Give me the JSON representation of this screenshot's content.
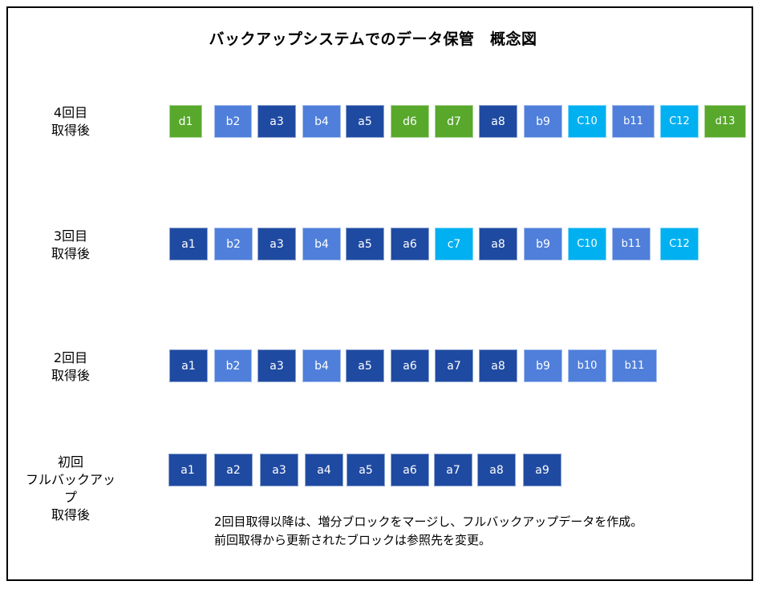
{
  "title": "バックアップシステムでのデータ保管　概念図",
  "colors": {
    "a": "#1F4AA1",
    "b": "#4F7FDB",
    "c": "#00B0F0",
    "d": "#58A82C"
  },
  "rows": [
    {
      "label": [
        "4回目",
        "取得後"
      ],
      "blocks": [
        {
          "text": "d1",
          "type": "d"
        },
        {
          "text": "b2",
          "type": "b"
        },
        {
          "text": "a3",
          "type": "a"
        },
        {
          "text": "b4",
          "type": "b"
        },
        {
          "text": "a5",
          "type": "a"
        },
        {
          "text": "d6",
          "type": "d"
        },
        {
          "text": "d7",
          "type": "d"
        },
        {
          "text": "a8",
          "type": "a"
        },
        {
          "text": "b9",
          "type": "b"
        },
        {
          "text": "C10",
          "type": "c"
        },
        {
          "text": "b11",
          "type": "b"
        },
        {
          "text": "C12",
          "type": "c"
        },
        {
          "text": "d13",
          "type": "d"
        }
      ]
    },
    {
      "label": [
        "3回目",
        "取得後"
      ],
      "blocks": [
        {
          "text": "a1",
          "type": "a"
        },
        {
          "text": "b2",
          "type": "b"
        },
        {
          "text": "a3",
          "type": "a"
        },
        {
          "text": "b4",
          "type": "b"
        },
        {
          "text": "a5",
          "type": "a"
        },
        {
          "text": "a6",
          "type": "a"
        },
        {
          "text": "c7",
          "type": "c"
        },
        {
          "text": "a8",
          "type": "a"
        },
        {
          "text": "b9",
          "type": "b"
        },
        {
          "text": "C10",
          "type": "c"
        },
        {
          "text": "b11",
          "type": "b"
        },
        {
          "text": "C12",
          "type": "c"
        }
      ]
    },
    {
      "label": [
        "2回目",
        "取得後"
      ],
      "blocks": [
        {
          "text": "a1",
          "type": "a"
        },
        {
          "text": "b2",
          "type": "b"
        },
        {
          "text": "a3",
          "type": "a"
        },
        {
          "text": "b4",
          "type": "b"
        },
        {
          "text": "a5",
          "type": "a"
        },
        {
          "text": "a6",
          "type": "a"
        },
        {
          "text": "a7",
          "type": "a"
        },
        {
          "text": "a8",
          "type": "a"
        },
        {
          "text": "b9",
          "type": "b"
        },
        {
          "text": "b10",
          "type": "b"
        },
        {
          "text": "b11",
          "type": "b"
        }
      ]
    },
    {
      "label": [
        "初回",
        "フルバックアップ",
        "取得後"
      ],
      "blocks": [
        {
          "text": "a1",
          "type": "a"
        },
        {
          "text": "a2",
          "type": "a"
        },
        {
          "text": "a3",
          "type": "a"
        },
        {
          "text": "a4",
          "type": "a"
        },
        {
          "text": "a5",
          "type": "a"
        },
        {
          "text": "a6",
          "type": "a"
        },
        {
          "text": "a7",
          "type": "a"
        },
        {
          "text": "a8",
          "type": "a"
        },
        {
          "text": "a9",
          "type": "a"
        }
      ]
    }
  ],
  "note": [
    "2回目取得以降は、増分ブロックをマージし、フルバックアップデータを作成。",
    "前回取得から更新されたブロックは参照先を変更。"
  ]
}
